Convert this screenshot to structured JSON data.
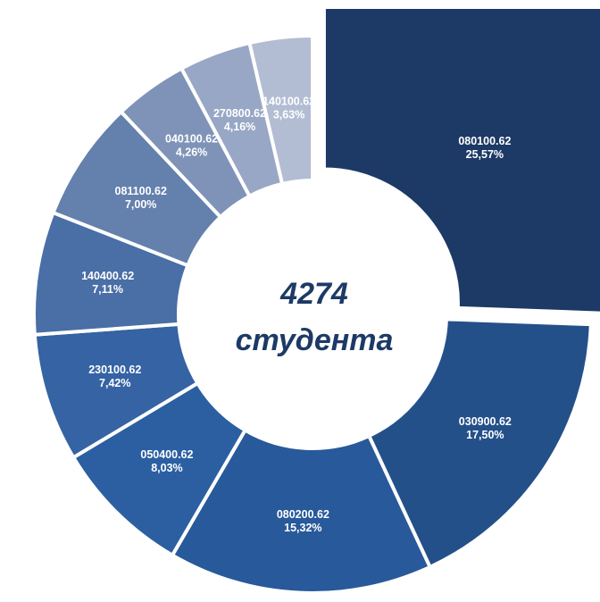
{
  "chart_data": {
    "type": "donut",
    "center_value": 4274,
    "center_label": "студента",
    "categories": [
      "080100.62",
      "030900.62",
      "080200.62",
      "050400.62",
      "230100.62",
      "140400.62",
      "081100.62",
      "040100.62",
      "270800.62",
      "140100.62"
    ],
    "values": [
      25.57,
      17.5,
      15.32,
      8.03,
      7.42,
      7.11,
      7.0,
      4.26,
      4.16,
      3.63
    ],
    "value_labels": [
      "25,57%",
      "17,50%",
      "15,32%",
      "8,03%",
      "7,42%",
      "7,11%",
      "7,00%",
      "4,26%",
      "4,16%",
      "3,63%"
    ],
    "colors": [
      "#1d3a66",
      "#24508a",
      "#28599a",
      "#2c5fa2",
      "#3563a3",
      "#4a6ea6",
      "#6480ad",
      "#7f93b8",
      "#98a7c5",
      "#b2bdd3"
    ]
  }
}
